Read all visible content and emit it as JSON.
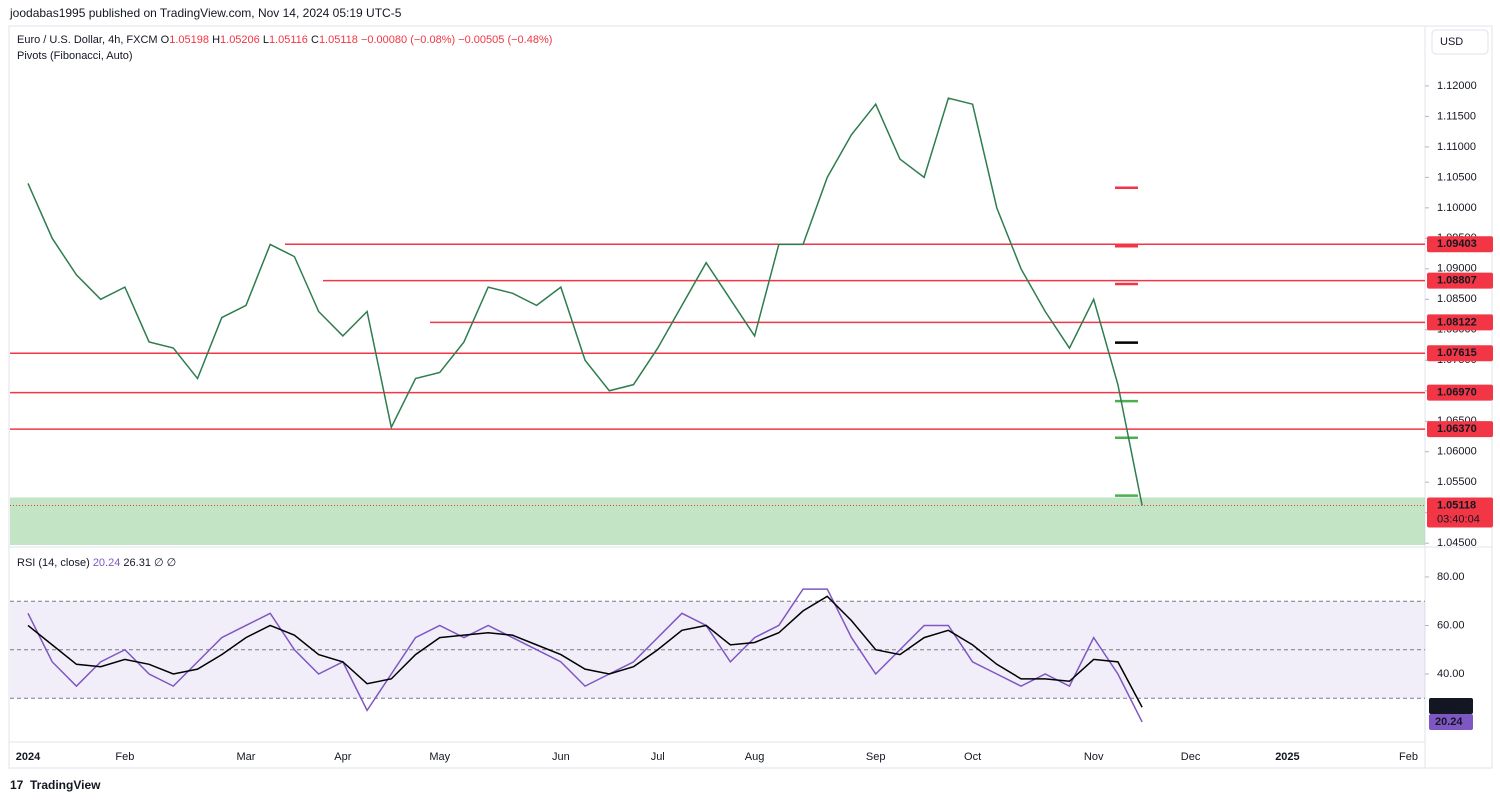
{
  "header": {
    "published": "joodabas1995 published on TradingView.com, Nov 14, 2024 05:19 UTC-5",
    "symbol": "Euro / U.S. Dollar, 4h, FXCM",
    "open_label": "O",
    "open": "1.05198",
    "high_label": "H",
    "high": "1.05206",
    "low_label": "L",
    "low": "1.05116",
    "close_label": "C",
    "change": "−0.00080 (−0.08%)",
    "change2": "−0.00505 (−0.48%)",
    "indicator": "Pivots (Fibonacci, Auto)",
    "currency": "USD",
    "countdown": "03:40:04",
    "brand": "TradingView"
  },
  "chart_data": [
    {
      "type": "line",
      "categories": [
        "2024",
        null,
        null,
        null,
        "Feb",
        null,
        null,
        null,
        null,
        "Mar",
        null,
        null,
        null,
        "Apr",
        null,
        null,
        null,
        "May",
        null,
        null,
        null,
        null,
        "Jun",
        null,
        null,
        null,
        "Jul",
        null,
        null,
        null,
        "Aug",
        null,
        null,
        null,
        null,
        "Sep",
        null,
        null,
        null,
        "Oct",
        null,
        null,
        null,
        null,
        "Nov",
        null,
        null,
        null,
        "Dec",
        null,
        null,
        null,
        "2025",
        null,
        null,
        null,
        null,
        "Feb"
      ],
      "series": [
        {
          "color": "#2e7d4f",
          "values": [
            1.104,
            1.095,
            1.089,
            1.085,
            1.087,
            1.078,
            1.077,
            1.072,
            1.082,
            1.084,
            1.094,
            1.092,
            1.083,
            1.079,
            1.083,
            1.064,
            1.072,
            1.073,
            1.078,
            1.087,
            1.086,
            1.084,
            1.087,
            1.075,
            1.07,
            1.071,
            1.077,
            1.084,
            1.091,
            1.085,
            1.079,
            1.094,
            1.094,
            1.105,
            1.112,
            1.117,
            1.108,
            1.105,
            1.118,
            1.117,
            1.1,
            1.09,
            1.083,
            1.077,
            1.085,
            1.071,
            1.05118,
            null,
            null,
            null,
            null,
            null,
            null,
            null,
            null,
            null,
            null,
            null
          ]
        }
      ],
      "ylim": [
        1.0447,
        1.1295
      ],
      "yticks": [
        {
          "value": 1.045,
          "label": "1.04500"
        },
        {
          "value": 1.05,
          "label": "1.05000"
        },
        {
          "value": 1.055,
          "label": "1.05500"
        },
        {
          "value": 1.06,
          "label": "1.06000"
        },
        {
          "value": 1.065,
          "label": "1.06500"
        },
        {
          "value": 1.07,
          "label": "1.07000"
        },
        {
          "value": 1.075,
          "label": "1.07500"
        },
        {
          "value": 1.08,
          "label": "1.08000"
        },
        {
          "value": 1.085,
          "label": "1.08500"
        },
        {
          "value": 1.09,
          "label": "1.09000"
        },
        {
          "value": 1.095,
          "label": "1.09500"
        },
        {
          "value": 1.1,
          "label": "1.10000"
        },
        {
          "value": 1.105,
          "label": "1.10500"
        },
        {
          "value": 1.11,
          "label": "1.11000"
        },
        {
          "value": 1.115,
          "label": "1.11500"
        },
        {
          "value": 1.12,
          "label": "1.12000"
        }
      ],
      "levels": [
        {
          "value": 1.09403,
          "label": "1.09403"
        },
        {
          "value": 1.08807,
          "label": "1.08807"
        },
        {
          "value": 1.08122,
          "label": "1.08122"
        },
        {
          "value": 1.07615,
          "label": "1.07615"
        },
        {
          "value": 1.0697,
          "label": "1.06970"
        },
        {
          "value": 1.0637,
          "label": "1.06370"
        }
      ],
      "level_color": "#f23645",
      "pivots": [
        1.1033,
        1.0937,
        1.0875,
        1.0779,
        1.0683,
        1.0623,
        1.0528
      ],
      "pivot_colors": [
        "#f23645",
        "#f23645",
        "#f23645",
        "#000000",
        "#4caf50",
        "#4caf50",
        "#4caf50"
      ],
      "zone": [
        1.0447,
        1.0525
      ],
      "zone_color": "#a5d6a7"
    },
    {
      "type": "line",
      "title": "RSI (14, close)",
      "symbols": [
        "∅",
        "∅"
      ],
      "series": [
        {
          "color": "#7e57c2",
          "values": [
            65,
            45,
            35,
            45,
            50,
            40,
            35,
            45,
            55,
            60,
            65,
            50,
            40,
            45,
            25,
            40,
            55,
            60,
            55,
            60,
            55,
            50,
            45,
            35,
            40,
            45,
            55,
            65,
            60,
            45,
            55,
            60,
            75,
            75,
            55,
            40,
            50,
            60,
            60,
            45,
            40,
            35,
            40,
            35,
            55,
            40,
            20.24,
            null,
            null,
            null,
            null,
            null,
            null,
            null,
            null,
            null,
            null,
            null
          ]
        },
        {
          "color": "#000000",
          "values": [
            60,
            52,
            44,
            43,
            46,
            44,
            40,
            42,
            48,
            55,
            60,
            56,
            48,
            45,
            36,
            38,
            48,
            55,
            56,
            57,
            56,
            52,
            48,
            42,
            40,
            43,
            50,
            58,
            60,
            52,
            53,
            57,
            66,
            72,
            62,
            50,
            48,
            55,
            58,
            52,
            44,
            38,
            38,
            37,
            46,
            45,
            26.31,
            null,
            null,
            null,
            null,
            null,
            null,
            null,
            null,
            null,
            null,
            null
          ]
        }
      ],
      "ylim": [
        12.8,
        91.1
      ],
      "yticks": [
        {
          "value": 40,
          "label": "40.00"
        },
        {
          "value": 60,
          "label": "60.00"
        },
        {
          "value": 80,
          "label": "80.00"
        }
      ],
      "upper_band": 70,
      "middle_band": 50,
      "lower_band": 30
    }
  ]
}
